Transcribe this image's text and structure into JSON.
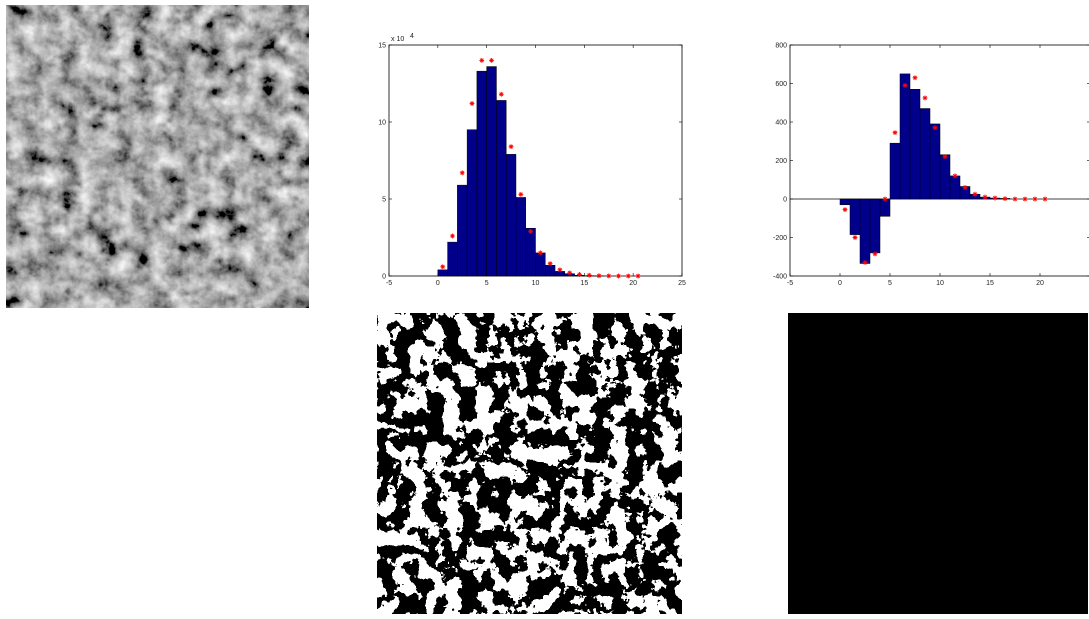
{
  "chart_data": [
    {
      "type": "bar",
      "panel": "histogram",
      "x": [
        0.5,
        1.5,
        2.5,
        3.5,
        4.5,
        5.5,
        6.5,
        7.5,
        8.5,
        9.5,
        10.5,
        11.5,
        12.5,
        13.5,
        14.5,
        15.5,
        16.5
      ],
      "values": [
        0.4,
        2.2,
        5.9,
        9.5,
        13.3,
        13.6,
        11.4,
        7.9,
        5.1,
        3.1,
        1.5,
        0.7,
        0.3,
        0.15,
        0.05,
        0.02,
        0.01
      ],
      "markers_x": [
        0.5,
        1.5,
        2.5,
        3.5,
        4.5,
        5.5,
        6.5,
        7.5,
        8.5,
        9.5,
        10.5,
        11.5,
        12.5,
        13.5,
        14.5,
        15.5,
        16.5,
        17.5,
        18.5,
        19.5,
        20.5
      ],
      "markers_y": [
        0.6,
        2.6,
        6.7,
        11.2,
        14.0,
        14.0,
        11.8,
        8.4,
        5.3,
        2.9,
        1.5,
        0.8,
        0.4,
        0.2,
        0.1,
        0.05,
        0.02,
        0.01,
        0.0,
        0.0,
        0.0
      ],
      "xlim": [
        -5,
        25
      ],
      "ylim": [
        0,
        15
      ],
      "xticks": [
        "-5",
        "0",
        "5",
        "10",
        "15",
        "20",
        "25"
      ],
      "yticks": [
        "0",
        "5",
        "10",
        "15"
      ],
      "multiplier_label": "x 10",
      "multiplier_exp": "4",
      "bar_color": "#00008b",
      "marker_color": "#ff0000",
      "grid": false
    },
    {
      "type": "bar",
      "panel": "difference",
      "x": [
        0.5,
        1.5,
        2.5,
        3.5,
        4.5,
        5.5,
        6.5,
        7.5,
        8.5,
        9.5,
        10.5,
        11.5,
        12.5,
        13.5,
        14.5,
        15.5,
        16.5
      ],
      "values": [
        -30,
        -185,
        -335,
        -280,
        -90,
        290,
        650,
        570,
        470,
        390,
        230,
        120,
        65,
        25,
        10,
        5,
        3
      ],
      "markers_x": [
        0.5,
        1.5,
        2.5,
        3.5,
        4.5,
        5.5,
        6.5,
        7.5,
        8.5,
        9.5,
        10.5,
        11.5,
        12.5,
        13.5,
        14.5,
        15.5,
        16.5,
        17.5,
        18.5,
        19.5,
        20.5
      ],
      "markers_y": [
        -55,
        -200,
        -330,
        -285,
        0,
        345,
        590,
        630,
        525,
        370,
        220,
        120,
        60,
        25,
        10,
        5,
        2,
        0,
        0,
        0,
        0
      ],
      "xlim": [
        -5,
        25
      ],
      "ylim": [
        -400,
        800
      ],
      "xticks": [
        "-5",
        "0",
        "5",
        "10",
        "15",
        "20"
      ],
      "yticks": [
        "-400",
        "-200",
        "0",
        "200",
        "400",
        "600",
        "800"
      ],
      "bar_color": "#00008b",
      "marker_color": "#ff0000",
      "grid": false
    }
  ]
}
